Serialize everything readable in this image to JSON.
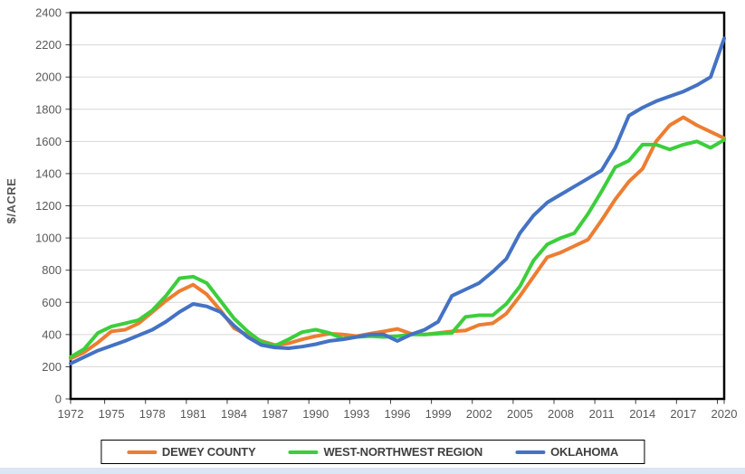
{
  "page": {
    "bottom_strip_color": "#dce6f2"
  },
  "chart_data": {
    "type": "line",
    "title": "",
    "xlabel": "",
    "ylabel": "$/ACRE",
    "ylim": [
      0,
      2400
    ],
    "y_tick_step": 200,
    "y_tick_labels": [
      "0",
      "200",
      "400",
      "600",
      "800",
      "1000",
      "1200",
      "1400",
      "1600",
      "1800",
      "2000",
      "2200",
      "2400"
    ],
    "x_range": [
      1972,
      2020
    ],
    "x_tick_labels": [
      "1972",
      "1975",
      "1978",
      "1981",
      "1984",
      "1987",
      "1990",
      "1993",
      "1996",
      "1999",
      "2002",
      "2005",
      "2008",
      "2011",
      "2014",
      "2017",
      "2020"
    ],
    "grid": "horizontal",
    "plot_border": true,
    "legend_position": "bottom",
    "x": [
      1972,
      1973,
      1974,
      1975,
      1976,
      1977,
      1978,
      1979,
      1980,
      1981,
      1982,
      1983,
      1984,
      1985,
      1986,
      1987,
      1988,
      1989,
      1990,
      1991,
      1992,
      1993,
      1994,
      1995,
      1996,
      1997,
      1998,
      1999,
      2000,
      2001,
      2002,
      2003,
      2004,
      2005,
      2006,
      2007,
      2008,
      2009,
      2010,
      2011,
      2012,
      2013,
      2014,
      2015,
      2016,
      2017,
      2018,
      2019,
      2020
    ],
    "series": [
      {
        "name": "DEWEY COUNTY",
        "color": "#ED7D31",
        "values": [
          250,
          290,
          350,
          420,
          430,
          470,
          540,
          610,
          670,
          710,
          650,
          550,
          440,
          395,
          360,
          335,
          345,
          370,
          390,
          405,
          400,
          390,
          405,
          420,
          435,
          405,
          400,
          410,
          420,
          425,
          460,
          470,
          530,
          640,
          760,
          880,
          910,
          950,
          990,
          1110,
          1240,
          1350,
          1430,
          1600,
          1700,
          1750,
          1700,
          1660,
          1620
        ]
      },
      {
        "name": "WEST-NORTHWEST REGION",
        "color": "#3CCE3C",
        "values": [
          260,
          310,
          410,
          450,
          470,
          490,
          550,
          640,
          750,
          760,
          720,
          610,
          500,
          420,
          355,
          330,
          370,
          415,
          430,
          410,
          375,
          385,
          390,
          385,
          390,
          400,
          400,
          405,
          410,
          510,
          520,
          520,
          590,
          700,
          860,
          960,
          1000,
          1030,
          1150,
          1290,
          1440,
          1480,
          1580,
          1580,
          1550,
          1580,
          1600,
          1560,
          1610
        ]
      },
      {
        "name": "OKLAHOMA",
        "color": "#4472C4",
        "values": [
          220,
          260,
          300,
          330,
          360,
          395,
          430,
          480,
          540,
          590,
          575,
          540,
          455,
          385,
          335,
          320,
          315,
          325,
          340,
          360,
          370,
          385,
          400,
          400,
          360,
          400,
          430,
          480,
          640,
          680,
          720,
          790,
          870,
          1030,
          1140,
          1220,
          1270,
          1320,
          1370,
          1420,
          1560,
          1760,
          1810,
          1850,
          1880,
          1910,
          1950,
          2000,
          2240
        ]
      }
    ]
  }
}
